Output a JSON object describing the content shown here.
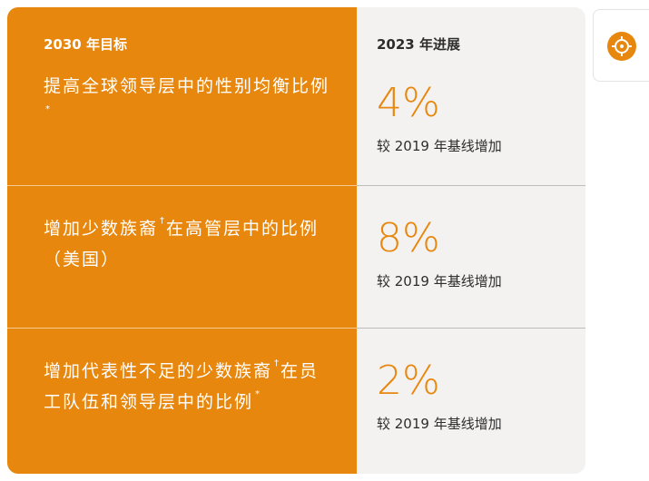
{
  "header": {
    "goal_title": "2030 年目标",
    "progress_title": "2023 年进展"
  },
  "rows": [
    {
      "goal": [
        {
          "text": "提高全球领导层中的性别均衡比例"
        },
        {
          "sup": "*"
        }
      ],
      "value": "4%",
      "note": "较 2019 年基线增加"
    },
    {
      "goal": [
        {
          "text": "增加少数族裔"
        },
        {
          "sup": "†"
        },
        {
          "text": "在高管层中的比例（美国）"
        }
      ],
      "value": "8%",
      "note": "较 2019 年基线增加"
    },
    {
      "goal": [
        {
          "text": "增加代表性不足的少数族裔"
        },
        {
          "sup": "†"
        },
        {
          "text": "在员工队伍和领导层中的比例"
        },
        {
          "sup": "*"
        }
      ],
      "value": "2%",
      "note": "较 2019 年基线增加"
    }
  ]
}
